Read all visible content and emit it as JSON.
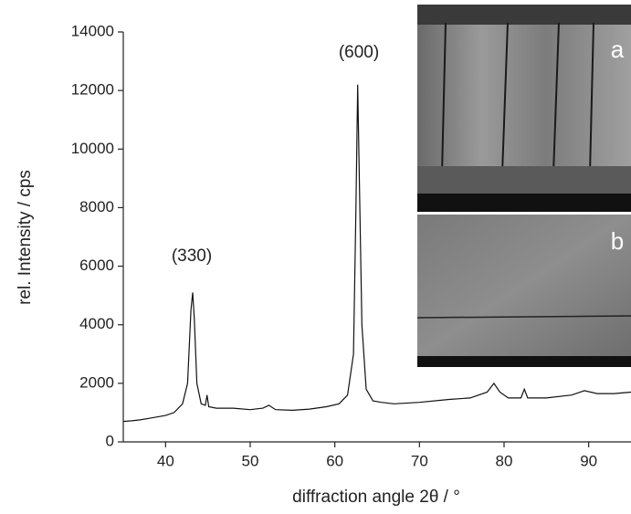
{
  "chart_data": {
    "type": "line",
    "x_label": "diffraction angle 2θ / °",
    "y_label": "rel. Intensity / cps",
    "x": [
      35,
      36,
      37,
      38,
      39,
      40,
      41,
      42,
      42.6,
      43.0,
      43.2,
      43.4,
      43.7,
      44.2,
      44.7,
      44.9,
      45.1,
      46,
      48,
      50,
      51.5,
      52.2,
      53,
      55,
      57,
      59,
      60.5,
      61.5,
      62.2,
      62.5,
      62.7,
      62.9,
      63.2,
      63.7,
      64.5,
      65.5,
      67,
      70,
      73.5,
      76,
      78,
      78.8,
      79.5,
      80.5,
      82,
      82.4,
      82.8,
      85,
      88,
      89.5,
      91,
      93,
      95
    ],
    "series": [
      {
        "color": "#111111",
        "values": [
          700,
          720,
          750,
          800,
          850,
          900,
          1000,
          1300,
          2000,
          4500,
          5100,
          4200,
          2000,
          1300,
          1250,
          1600,
          1200,
          1150,
          1150,
          1100,
          1150,
          1250,
          1100,
          1080,
          1120,
          1200,
          1300,
          1600,
          3000,
          8000,
          12200,
          9000,
          4000,
          1800,
          1400,
          1350,
          1300,
          1350,
          1450,
          1500,
          1700,
          2000,
          1700,
          1500,
          1500,
          1800,
          1500,
          1500,
          1600,
          1750,
          1650,
          1650,
          1700
        ]
      }
    ],
    "xlim": [
      35,
      95
    ],
    "xticks": [
      40,
      50,
      60,
      70,
      80,
      90
    ],
    "ylim": [
      0,
      14000
    ],
    "yticks": [
      0,
      2000,
      4000,
      6000,
      8000,
      10000,
      12000,
      14000
    ],
    "annotations": [
      "(330)",
      "(600)"
    ],
    "inset_labels": [
      "a",
      "b"
    ]
  }
}
